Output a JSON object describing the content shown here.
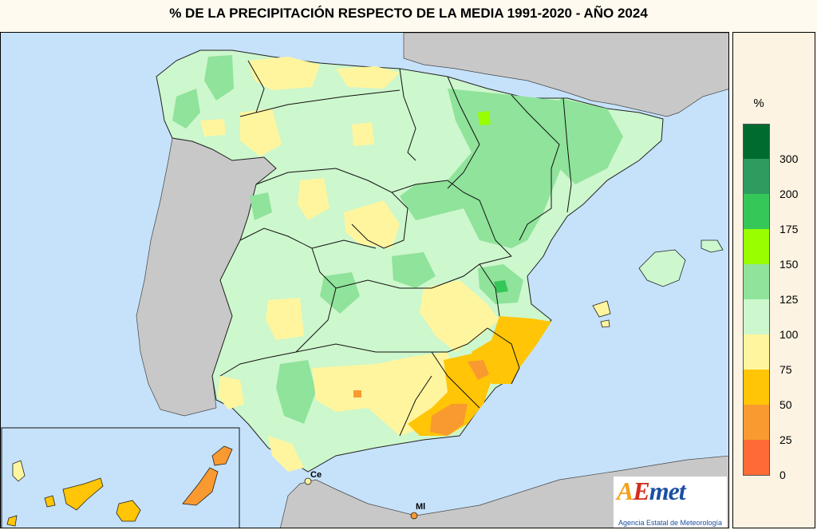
{
  "title": "% DE LA PRECIPITACIÓN RESPECTO DE LA MEDIA 1991-2020 - AÑO 2024",
  "legend": {
    "unit": "%",
    "classes": [
      {
        "label": "300",
        "color": "#006b2e"
      },
      {
        "label": "200",
        "color": "#2e9b5f"
      },
      {
        "label": "175",
        "color": "#35c758"
      },
      {
        "label": "150",
        "color": "#99ff00"
      },
      {
        "label": "125",
        "color": "#8fe39a"
      },
      {
        "label": "100",
        "color": "#cdf7cd"
      },
      {
        "label": "75",
        "color": "#fff59e"
      },
      {
        "label": "50",
        "color": "#ffc506"
      },
      {
        "label": "25",
        "color": "#f89a30"
      },
      {
        "label": "0",
        "color": "#ff6a36"
      }
    ]
  },
  "map": {
    "sea_color": "#c6e2fb",
    "foreign_land_color": "#c8c8c8",
    "cities": [
      {
        "label": "Ce",
        "color": "#ffeb8a"
      },
      {
        "label": "Ml",
        "color": "#f89a30"
      }
    ]
  },
  "logo": {
    "letter_a": "A",
    "letter_e": "E",
    "letters_rest": "met",
    "subtitle": "Agencia Estatal de Meteorología"
  }
}
